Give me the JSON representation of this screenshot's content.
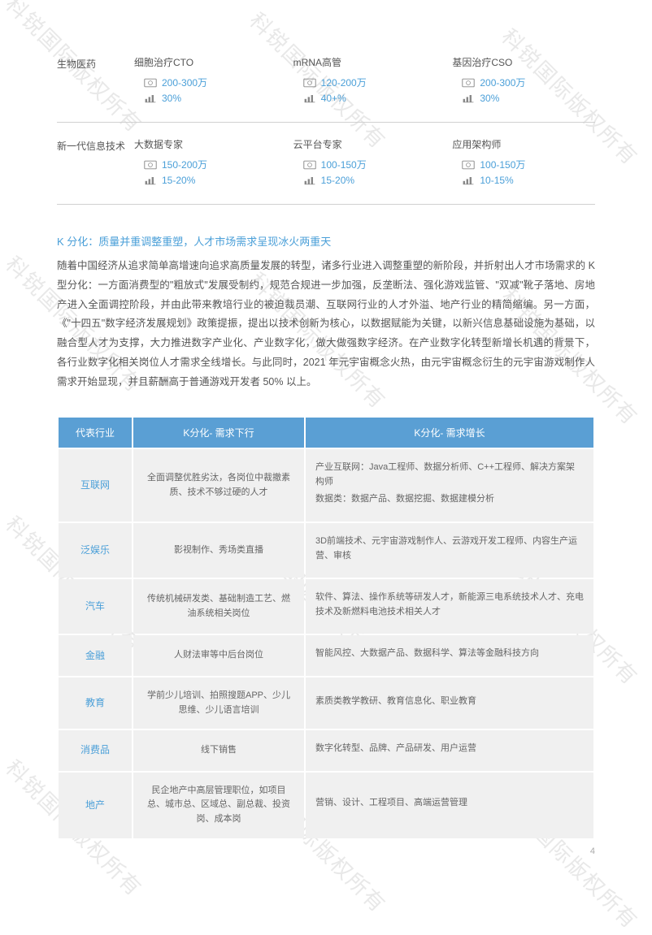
{
  "watermark_text": "科锐国际版权所有",
  "page_number": "4",
  "salary_categories": [
    {
      "label": "生物医药",
      "positions": [
        {
          "title": "细胞治疗CTO",
          "salary": "200-300万",
          "growth": "30%"
        },
        {
          "title": "mRNA高管",
          "salary": "120-200万",
          "growth": "40+%"
        },
        {
          "title": "基因治疗CSO",
          "salary": "200-300万",
          "growth": "30%"
        }
      ]
    },
    {
      "label": "新一代信息技术",
      "positions": [
        {
          "title": "大数据专家",
          "salary": "150-200万",
          "growth": "15-20%"
        },
        {
          "title": "云平台专家",
          "salary": "100-150万",
          "growth": "15-20%"
        },
        {
          "title": "应用架构师",
          "salary": "100-150万",
          "growth": "10-15%"
        }
      ]
    }
  ],
  "article": {
    "title": "K 分化：质量并重调整重塑，人才市场需求呈现冰火两重天",
    "body": "随着中国经济从追求简单高增速向追求高质量发展的转型，诸多行业进入调整重塑的新阶段，并折射出人才市场需求的 K 型分化：一方面消费型的\"粗放式\"发展受制约，规范合规进一步加强，反垄断法、强化游戏监管、\"双减\"靴子落地、房地产进入全面调控阶段，并由此带来教培行业的被迫裁员潮、互联网行业的人才外溢、地产行业的精简缩编。另一方面，《\"十四五\"数字经济发展规划》政策提振，提出以技术创新为核心，以数据赋能为关键，以新兴信息基础设施为基础，以融合型人才为支撑，大力推进数字产业化、产业数字化，做大做强数字经济。在产业数字化转型新增长机遇的背景下，各行业数字化相关岗位人才需求全线增长。与此同时，2021 年元宇宙概念火热，由元宇宙概念衍生的元宇宙游戏制作人需求开始显现，并且薪酬高于普通游戏开发者 50% 以上。"
  },
  "k_table": {
    "headers": [
      "代表行业",
      "K分化- 需求下行",
      "K分化- 需求增长"
    ],
    "rows": [
      {
        "industry": "互联网",
        "down": "全面调整优胜劣汰，各岗位中裁撤素质、技术不够过硬的人才",
        "up": "产业互联网：Java工程师、数据分析师、C++工程师、解决方案架构师\n数据类：数据产品、数据挖掘、数据建模分析"
      },
      {
        "industry": "泛娱乐",
        "down": "影视制作、秀场类直播",
        "up": "3D前端技术、元宇宙游戏制作人、云游戏开发工程师、内容生产运营、审核"
      },
      {
        "industry": "汽车",
        "down": "传统机械研发类、基础制造工艺、燃油系统相关岗位",
        "up": "软件、算法、操作系统等研发人才，新能源三电系统技术人才、充电技术及新燃料电池技术相关人才"
      },
      {
        "industry": "金融",
        "down": "人财法审等中后台岗位",
        "up": "智能风控、大数据产品、数据科学、算法等金融科技方向"
      },
      {
        "industry": "教育",
        "down": "学前少儿培训、拍照搜题APP、少儿思维、少儿语言培训",
        "up": "素质类教学教研、教育信息化、职业教育"
      },
      {
        "industry": "消费品",
        "down": "线下销售",
        "up": "数字化转型、品牌、产品研发、用户运营"
      },
      {
        "industry": "地产",
        "down": "民企地产中高层管理职位，如项目总、城市总、区域总、副总裁、投资岗、成本岗",
        "up": "营销、设计、工程项目、高端运营管理"
      }
    ]
  },
  "colors": {
    "accent": "#4a9fd8",
    "header_bg": "#5a9fd4",
    "cell_bg": "#f0f0f0",
    "text": "#555",
    "watermark": "#e8e8e8"
  }
}
